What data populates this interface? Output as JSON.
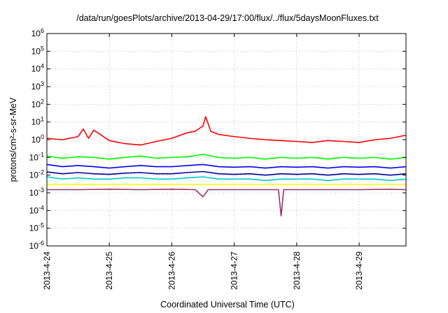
{
  "chart_data": {
    "type": "line",
    "title": "/data/run/goesPlots/archive/2013-04-29/17:00/flux/../flux/5daysMoonFluxes.txt",
    "xlabel": "Coordinated Universal Time (UTC)",
    "ylabel": "protons/cm²-s-sr-MeV",
    "yscale": "log",
    "ylim_exponent": [
      -6,
      6
    ],
    "xlim": [
      "2013-04-24",
      "2013-04-29 18:00"
    ],
    "x_ticks": [
      "2013-4-24",
      "2013-4-25",
      "2013-4-26",
      "2013-4-27",
      "2013-4-28",
      "2013-4-29"
    ],
    "y_ticks": [
      -6,
      -5,
      -4,
      -3,
      -2,
      -1,
      0,
      1,
      2,
      3,
      4,
      5,
      6
    ],
    "grid": true,
    "series": [
      {
        "color": "#ff0000",
        "x": [
          "2013-04-24 00:00",
          "2013-04-24 06:00",
          "2013-04-24 12:00",
          "2013-04-24 14:00",
          "2013-04-24 16:00",
          "2013-04-24 18:00",
          "2013-04-25 00:00",
          "2013-04-25 06:00",
          "2013-04-25 12:00",
          "2013-04-25 18:00",
          "2013-04-26 00:00",
          "2013-04-26 06:00",
          "2013-04-26 09:00",
          "2013-04-26 12:00",
          "2013-04-26 13:00",
          "2013-04-26 15:00",
          "2013-04-26 18:00",
          "2013-04-27 00:00",
          "2013-04-27 06:00",
          "2013-04-27 12:00",
          "2013-04-27 18:00",
          "2013-04-28 00:00",
          "2013-04-28 06:00",
          "2013-04-28 12:00",
          "2013-04-28 18:00",
          "2013-04-29 00:00",
          "2013-04-29 06:00",
          "2013-04-29 12:00",
          "2013-04-29 18:00"
        ],
        "values": [
          1.2,
          1.0,
          1.5,
          4.0,
          1.2,
          3.5,
          0.9,
          0.6,
          0.5,
          0.8,
          1.2,
          2.5,
          3.0,
          6.0,
          20.0,
          3.0,
          2.0,
          1.5,
          1.2,
          1.0,
          0.9,
          0.8,
          0.7,
          0.9,
          0.8,
          0.7,
          1.0,
          1.2,
          1.8
        ]
      },
      {
        "color": "#00ff00",
        "x": [
          "2013-04-24 00:00",
          "2013-04-24 06:00",
          "2013-04-24 12:00",
          "2013-04-24 18:00",
          "2013-04-25 00:00",
          "2013-04-25 06:00",
          "2013-04-25 12:00",
          "2013-04-25 18:00",
          "2013-04-26 00:00",
          "2013-04-26 06:00",
          "2013-04-26 12:00",
          "2013-04-26 18:00",
          "2013-04-27 00:00",
          "2013-04-27 06:00",
          "2013-04-27 12:00",
          "2013-04-27 18:00",
          "2013-04-28 00:00",
          "2013-04-28 06:00",
          "2013-04-28 12:00",
          "2013-04-28 18:00",
          "2013-04-29 00:00",
          "2013-04-29 06:00",
          "2013-04-29 12:00",
          "2013-04-29 18:00"
        ],
        "values": [
          0.12,
          0.09,
          0.11,
          0.1,
          0.08,
          0.1,
          0.12,
          0.09,
          0.1,
          0.11,
          0.15,
          0.1,
          0.09,
          0.1,
          0.08,
          0.1,
          0.09,
          0.1,
          0.08,
          0.1,
          0.09,
          0.1,
          0.08,
          0.1
        ]
      },
      {
        "color": "#0000ff",
        "x": [
          "2013-04-24 00:00",
          "2013-04-24 06:00",
          "2013-04-24 12:00",
          "2013-04-24 18:00",
          "2013-04-25 00:00",
          "2013-04-25 06:00",
          "2013-04-25 12:00",
          "2013-04-25 18:00",
          "2013-04-26 00:00",
          "2013-04-26 06:00",
          "2013-04-26 12:00",
          "2013-04-26 18:00",
          "2013-04-27 00:00",
          "2013-04-27 06:00",
          "2013-04-27 12:00",
          "2013-04-27 18:00",
          "2013-04-28 00:00",
          "2013-04-28 06:00",
          "2013-04-28 12:00",
          "2013-04-28 18:00",
          "2013-04-29 00:00",
          "2013-04-29 06:00",
          "2013-04-29 12:00",
          "2013-04-29 18:00"
        ],
        "values": [
          0.04,
          0.03,
          0.035,
          0.03,
          0.025,
          0.03,
          0.035,
          0.03,
          0.03,
          0.035,
          0.04,
          0.03,
          0.028,
          0.03,
          0.025,
          0.03,
          0.028,
          0.03,
          0.025,
          0.03,
          0.028,
          0.03,
          0.025,
          0.03
        ]
      },
      {
        "color": "#000099",
        "x": [
          "2013-04-24 00:00",
          "2013-04-24 06:00",
          "2013-04-24 12:00",
          "2013-04-24 18:00",
          "2013-04-25 00:00",
          "2013-04-25 06:00",
          "2013-04-25 12:00",
          "2013-04-25 18:00",
          "2013-04-26 00:00",
          "2013-04-26 06:00",
          "2013-04-26 12:00",
          "2013-04-26 18:00",
          "2013-04-27 00:00",
          "2013-04-27 06:00",
          "2013-04-27 12:00",
          "2013-04-27 18:00",
          "2013-04-28 00:00",
          "2013-04-28 06:00",
          "2013-04-28 12:00",
          "2013-04-28 18:00",
          "2013-04-29 00:00",
          "2013-04-29 06:00",
          "2013-04-29 12:00",
          "2013-04-29 18:00"
        ],
        "values": [
          0.015,
          0.012,
          0.014,
          0.012,
          0.011,
          0.013,
          0.014,
          0.012,
          0.012,
          0.014,
          0.016,
          0.012,
          0.011,
          0.012,
          0.01,
          0.012,
          0.011,
          0.012,
          0.01,
          0.012,
          0.011,
          0.012,
          0.01,
          0.012
        ]
      },
      {
        "color": "#00cccc",
        "x": [
          "2013-04-24 00:00",
          "2013-04-24 06:00",
          "2013-04-24 12:00",
          "2013-04-24 18:00",
          "2013-04-25 00:00",
          "2013-04-25 06:00",
          "2013-04-25 12:00",
          "2013-04-25 18:00",
          "2013-04-26 00:00",
          "2013-04-26 06:00",
          "2013-04-26 12:00",
          "2013-04-26 18:00",
          "2013-04-27 00:00",
          "2013-04-27 06:00",
          "2013-04-27 12:00",
          "2013-04-27 18:00",
          "2013-04-28 00:00",
          "2013-04-28 06:00",
          "2013-04-28 12:00",
          "2013-04-28 18:00",
          "2013-04-29 00:00",
          "2013-04-29 06:00",
          "2013-04-29 12:00",
          "2013-04-29 18:00"
        ],
        "values": [
          0.008,
          0.006,
          0.007,
          0.006,
          0.006,
          0.007,
          0.007,
          0.006,
          0.006,
          0.007,
          0.008,
          0.006,
          0.006,
          0.006,
          0.005,
          0.006,
          0.006,
          0.006,
          0.005,
          0.006,
          0.006,
          0.006,
          0.005,
          0.006
        ]
      },
      {
        "color": "#ffff00",
        "x": [
          "2013-04-24 00:00",
          "2013-04-24 12:00",
          "2013-04-25 00:00",
          "2013-04-25 12:00",
          "2013-04-26 00:00",
          "2013-04-26 12:00",
          "2013-04-27 00:00",
          "2013-04-27 12:00",
          "2013-04-28 00:00",
          "2013-04-28 12:00",
          "2013-04-29 00:00",
          "2013-04-29 12:00",
          "2013-04-29 18:00"
        ],
        "values": [
          0.003,
          0.003,
          0.003,
          0.003,
          0.003,
          0.003,
          0.003,
          0.003,
          0.003,
          0.003,
          0.003,
          0.003,
          0.003
        ]
      },
      {
        "color": "#993366",
        "x": [
          "2013-04-24 00:00",
          "2013-04-24 12:00",
          "2013-04-25 00:00",
          "2013-04-25 12:00",
          "2013-04-26 00:00",
          "2013-04-26 09:00",
          "2013-04-26 12:00",
          "2013-04-26 14:00",
          "2013-04-27 00:00",
          "2013-04-27 12:00",
          "2013-04-27 17:00",
          "2013-04-27 18:00",
          "2013-04-27 19:00",
          "2013-04-28 00:00",
          "2013-04-28 12:00",
          "2013-04-29 00:00",
          "2013-04-29 12:00",
          "2013-04-29 18:00"
        ],
        "values": [
          0.0015,
          0.0015,
          0.0016,
          0.0015,
          0.0016,
          0.0015,
          0.0006,
          0.0015,
          0.0015,
          0.0015,
          0.0015,
          5e-05,
          0.0015,
          0.0015,
          0.0015,
          0.0015,
          0.0016,
          0.0015
        ]
      }
    ]
  }
}
